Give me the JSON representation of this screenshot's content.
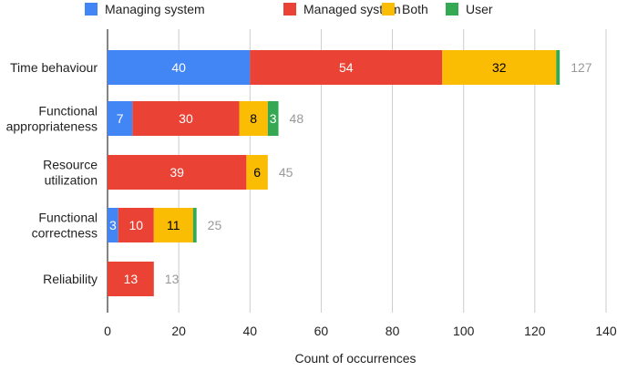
{
  "chart_data": {
    "type": "bar",
    "orientation": "horizontal",
    "stacked": true,
    "categories": [
      [
        "Time behaviour"
      ],
      [
        "Functional",
        "appropriateness"
      ],
      [
        "Resource",
        "utilization"
      ],
      [
        "Functional",
        "correctness"
      ],
      [
        "Reliability"
      ]
    ],
    "series": [
      {
        "name": "Managing system",
        "color": "#4285F4",
        "values": [
          40,
          7,
          0,
          3,
          0
        ]
      },
      {
        "name": "Managed system",
        "color": "#EA4335",
        "values": [
          54,
          30,
          39,
          10,
          13
        ]
      },
      {
        "name": "Both",
        "color": "#FBBC04",
        "values": [
          32,
          8,
          6,
          11,
          0
        ]
      },
      {
        "name": "User",
        "color": "#34A853",
        "values": [
          1,
          3,
          0,
          1,
          0
        ]
      }
    ],
    "segment_labels": [
      [
        "40",
        "54",
        "32",
        ""
      ],
      [
        "7",
        "30",
        "8",
        "3"
      ],
      [
        "",
        "39",
        "6",
        ""
      ],
      [
        "3",
        "10",
        "11",
        ""
      ],
      [
        "",
        "13",
        "",
        ""
      ]
    ],
    "totals": [
      "127",
      "48",
      "45",
      "25",
      "13"
    ],
    "xlabel": "Count of occurrences",
    "ylabel": "",
    "title": "",
    "xlim": [
      0,
      140
    ],
    "xticks": [
      0,
      20,
      40,
      60,
      80,
      100,
      120,
      140
    ],
    "grid": "vertical",
    "legend_position": "top"
  },
  "colors": {
    "total_label": "#999999",
    "axis_text": "#222222",
    "grid": "#cccccc",
    "label_dark": "#000000",
    "label_light": "#ffffff"
  }
}
